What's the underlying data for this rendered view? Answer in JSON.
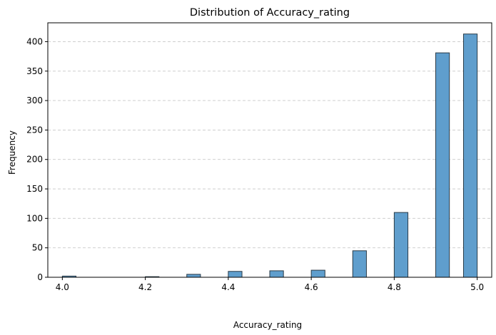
{
  "chart_data": {
    "type": "bar",
    "title": "Distribution of Accuracy_rating",
    "xlabel": "Accuracy_rating",
    "ylabel": "Frequency",
    "xlim": [
      3.965,
      5.035
    ],
    "ylim": [
      0,
      432
    ],
    "xticks": [
      "4.0",
      "4.2",
      "4.4",
      "4.6",
      "4.8",
      "5.0"
    ],
    "yticks": [
      "0",
      "50",
      "100",
      "150",
      "200",
      "250",
      "300",
      "350",
      "400"
    ],
    "grid": "y-dashed",
    "bar_color": "#5f9ecd",
    "bar_edge_color": "#2a3b47",
    "bins": [
      {
        "x0": 4.0,
        "x1": 4.033,
        "value": 2
      },
      {
        "x0": 4.2,
        "x1": 4.233,
        "value": 1
      },
      {
        "x0": 4.3,
        "x1": 4.333,
        "value": 5
      },
      {
        "x0": 4.4,
        "x1": 4.433,
        "value": 10
      },
      {
        "x0": 4.5,
        "x1": 4.533,
        "value": 11
      },
      {
        "x0": 4.6,
        "x1": 4.633,
        "value": 12
      },
      {
        "x0": 4.7,
        "x1": 4.733,
        "value": 45
      },
      {
        "x0": 4.8,
        "x1": 4.833,
        "value": 110
      },
      {
        "x0": 4.9,
        "x1": 4.933,
        "value": 381
      },
      {
        "x0": 4.967,
        "x1": 5.0,
        "value": 413
      }
    ]
  }
}
